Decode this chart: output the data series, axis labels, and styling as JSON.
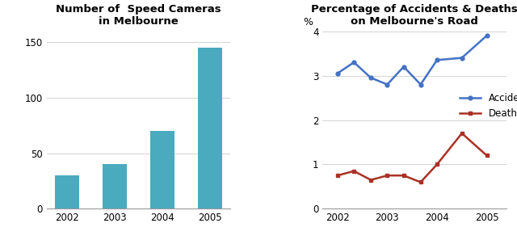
{
  "bar_years": [
    "2002",
    "2003",
    "2004",
    "2005"
  ],
  "bar_values": [
    30,
    40,
    70,
    145
  ],
  "bar_color": "#4AABBF",
  "bar_title": "Number of  Speed Cameras\nin Melbourne",
  "bar_ylim": [
    0,
    160
  ],
  "bar_yticks": [
    0,
    50,
    100,
    150
  ],
  "accidents_x": [
    2002,
    2002.33,
    2002.67,
    2003,
    2003.33,
    2003.67,
    2004,
    2004.5,
    2005
  ],
  "accidents_y": [
    3.05,
    3.3,
    2.95,
    2.8,
    3.2,
    2.8,
    3.35,
    3.4,
    3.9
  ],
  "deaths_x": [
    2002,
    2002.33,
    2002.67,
    2003,
    2003.33,
    2003.67,
    2004,
    2004.5,
    2005
  ],
  "deaths_y": [
    0.75,
    0.85,
    0.65,
    0.75,
    0.75,
    0.6,
    1.0,
    1.7,
    1.2
  ],
  "accidents_color": "#4472C4",
  "deaths_color": "#A93226",
  "line_title": "Percentage of Accidents & Deaths\non Melbourne's Road",
  "line_ylabel": "%",
  "line_ylim": [
    0,
    4
  ],
  "line_yticks": [
    0,
    1,
    2,
    3,
    4
  ],
  "line_xlim": [
    2001.7,
    2005.4
  ],
  "line_xticks": [
    2002,
    2003,
    2004,
    2005
  ]
}
